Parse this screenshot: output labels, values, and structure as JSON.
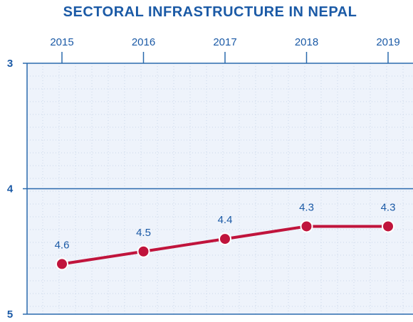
{
  "chart_data": {
    "type": "line",
    "title": "SECTORAL INFRASTRUCTURE IN NEPAL",
    "x": [
      "2015",
      "2016",
      "2017",
      "2018",
      "2019"
    ],
    "series": [
      {
        "values": [
          4.6,
          4.5,
          4.4,
          4.3,
          4.3
        ]
      }
    ],
    "data_labels": [
      "4.6",
      "4.5",
      "4.4",
      "4.3",
      "4.3"
    ],
    "y_ticks": [
      "3",
      "4",
      "5"
    ],
    "ylim": [
      3,
      5
    ],
    "y_inverted": true,
    "x_axis_position": "top",
    "grid": true,
    "colors": {
      "line": "#c0143c",
      "text": "#1b5aa6",
      "plot_bg": "#eef3fb",
      "axis": "#2a6aad",
      "grid": "#cbd7ea"
    }
  }
}
